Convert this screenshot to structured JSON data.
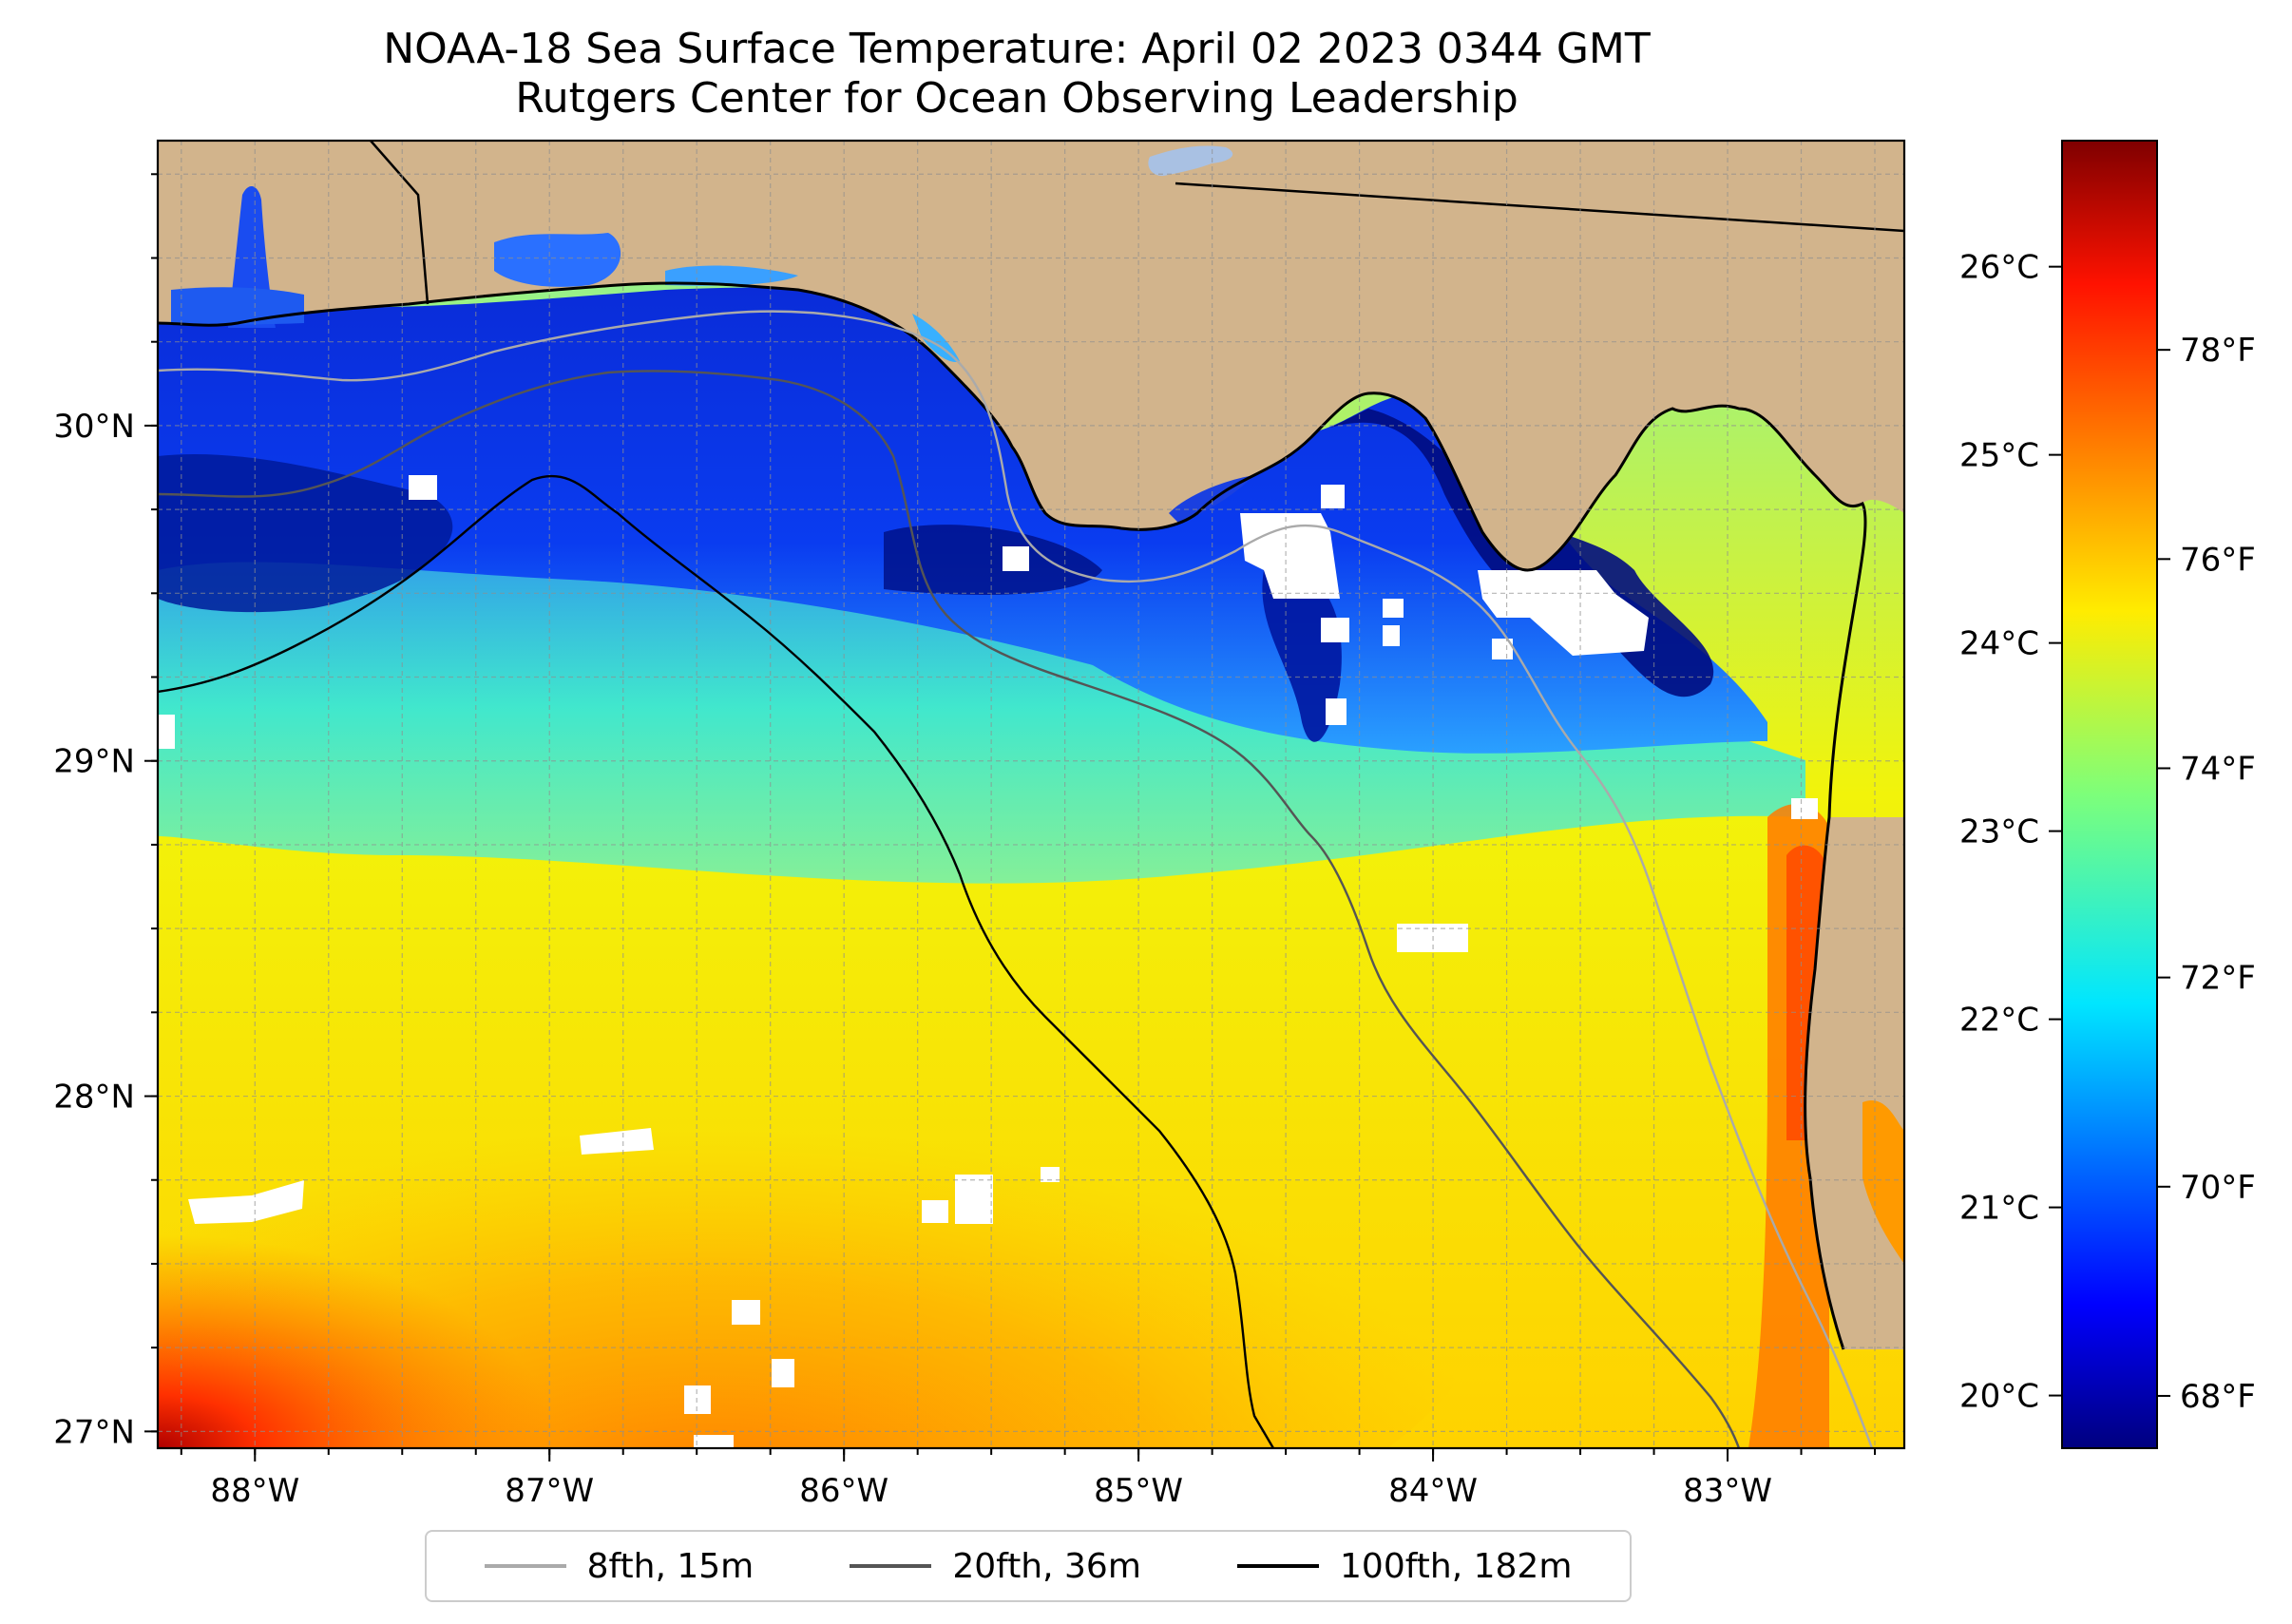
{
  "figure": {
    "title_line1": "NOAA-18 Sea Surface Temperature: April 02 2023 0344 GMT",
    "title_line2": "Rutgers Center for Ocean Observing Leadership"
  },
  "map": {
    "land_color": "#d2b48c",
    "lake_color": "#a9c1e3",
    "cloud_mask_color": "#ffffff",
    "lon_range": [
      -88.33,
      -82.4
    ],
    "lat_range": [
      26.95,
      30.85
    ],
    "lon_ticks": [
      {
        "value": -88,
        "label": "88°W"
      },
      {
        "value": -87,
        "label": "87°W"
      },
      {
        "value": -86,
        "label": "86°W"
      },
      {
        "value": -85,
        "label": "85°W"
      },
      {
        "value": -84,
        "label": "84°W"
      },
      {
        "value": -83,
        "label": "83°W"
      }
    ],
    "lat_ticks": [
      {
        "value": 27,
        "label": "27°N"
      },
      {
        "value": 28,
        "label": "28°N"
      },
      {
        "value": 29,
        "label": "29°N"
      },
      {
        "value": 30,
        "label": "30°N"
      }
    ],
    "gridlines": "dashed gray every 0.25°",
    "sst_pattern": "cold 67-70°F nearshore along the panhandle coast and Big Bend, warming to 72-74°F mid-shelf and 76-78°F offshore to the southwest; warm 77-79°F band along the west Florida coast south of 28.8°N"
  },
  "colorbar": {
    "colormap": "jet",
    "celsius_ticks": [
      {
        "value": 20,
        "label": "20°C"
      },
      {
        "value": 21,
        "label": "21°C"
      },
      {
        "value": 22,
        "label": "22°C"
      },
      {
        "value": 23,
        "label": "23°C"
      },
      {
        "value": 24,
        "label": "24°C"
      },
      {
        "value": 25,
        "label": "25°C"
      },
      {
        "value": 26,
        "label": "26°C"
      }
    ],
    "fahrenheit_ticks": [
      {
        "value": 68,
        "label": "68°F"
      },
      {
        "value": 70,
        "label": "70°F"
      },
      {
        "value": 72,
        "label": "72°F"
      },
      {
        "value": 74,
        "label": "74°F"
      },
      {
        "value": 76,
        "label": "76°F"
      },
      {
        "value": 78,
        "label": "78°F"
      }
    ],
    "range_f": [
      67.5,
      80
    ],
    "range_c": [
      19.72,
      26.67
    ]
  },
  "legend": {
    "items": [
      {
        "label": "8fth, 15m",
        "color": "#aaaaaa"
      },
      {
        "label": "20fth, 36m",
        "color": "#555555"
      },
      {
        "label": "100fth, 182m",
        "color": "#000000"
      }
    ]
  }
}
